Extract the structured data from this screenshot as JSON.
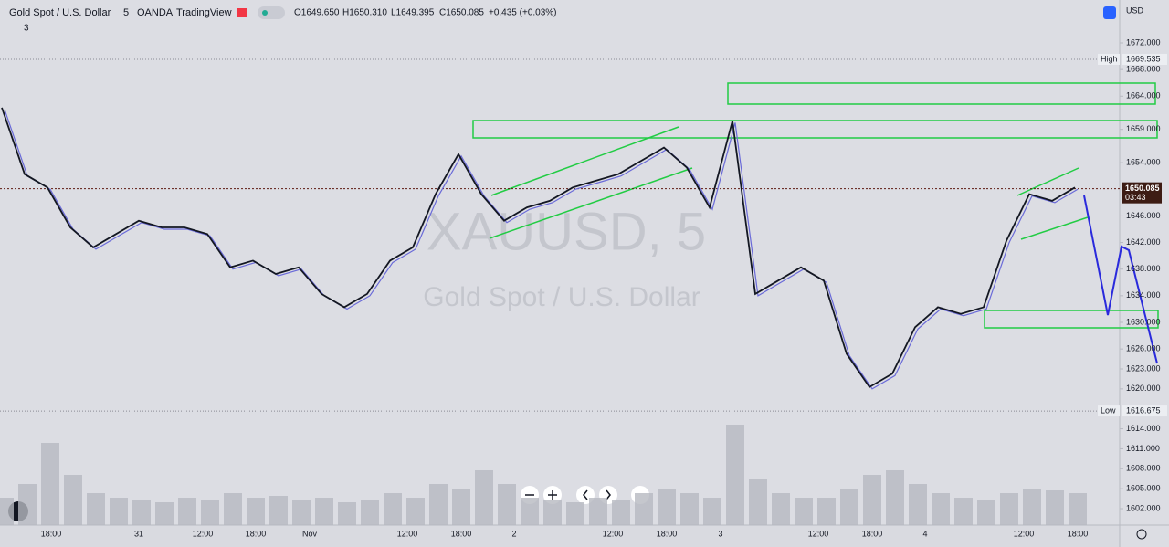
{
  "header": {
    "symbol": "Gold Spot / U.S. Dollar",
    "interval": "5",
    "exchange": "OANDA",
    "source": "TradingView",
    "open": "O1649.650",
    "high": "H1650.310",
    "low": "L1649.395",
    "close": "C1650.085",
    "change": "+0.435 (+0.03%)",
    "indicators": "3",
    "currency": "USD"
  },
  "watermark": {
    "ticker": "XAUUSD, 5",
    "name": "Gold Spot / U.S. Dollar"
  },
  "price_axis": {
    "range": [
      1602,
      1672
    ],
    "ticks": [
      {
        "value": 1672,
        "label": "1672.000"
      },
      {
        "value": 1668,
        "label": "1668.000"
      },
      {
        "value": 1664,
        "label": "1664.000"
      },
      {
        "value": 1659,
        "label": "1659.000"
      },
      {
        "value": 1654,
        "label": "1654.000"
      },
      {
        "value": 1646,
        "label": "1646.000"
      },
      {
        "value": 1642,
        "label": "1642.000"
      },
      {
        "value": 1638,
        "label": "1638.000"
      },
      {
        "value": 1634,
        "label": "1634.000"
      },
      {
        "value": 1630,
        "label": "1630.000"
      },
      {
        "value": 1626,
        "label": "1626.000"
      },
      {
        "value": 1623,
        "label": "1623.000"
      },
      {
        "value": 1620,
        "label": "1620.000"
      },
      {
        "value": 1614,
        "label": "1614.000"
      },
      {
        "value": 1611,
        "label": "1611.000"
      },
      {
        "value": 1608,
        "label": "1608.000"
      },
      {
        "value": 1605,
        "label": "1605.000"
      },
      {
        "value": 1602,
        "label": "1602.000"
      }
    ],
    "high": {
      "tag": "High",
      "value": 1669.535,
      "label": "1669.535"
    },
    "low": {
      "tag": "Low",
      "value": 1616.675,
      "label": "1616.675"
    },
    "last": {
      "value": 1650.085,
      "label": "1650.085",
      "countdown": "03:43"
    }
  },
  "time_axis": [
    "18:00",
    "31",
    "12:00",
    "18:00",
    "Nov",
    "12:00",
    "18:00",
    "2",
    "12:00",
    "18:00",
    "3",
    "12:00",
    "18:00",
    "4",
    "12:00",
    "18:00"
  ],
  "price_path": [
    1662,
    1652,
    1650,
    1644,
    1641,
    1643,
    1645,
    1644,
    1644,
    1643,
    1638,
    1639,
    1637,
    1638,
    1634,
    1632,
    1634,
    1639,
    1641,
    1649,
    1655,
    1649,
    1645,
    1647,
    1648,
    1650,
    1651,
    1652,
    1654,
    1656,
    1653,
    1647,
    1660,
    1634,
    1636,
    1638,
    1636,
    1625,
    1620,
    1622,
    1629,
    1632,
    1631,
    1632,
    1642,
    1649,
    1648,
    1650
  ],
  "volume": [
    30,
    45,
    90,
    55,
    35,
    30,
    28,
    25,
    30,
    28,
    35,
    30,
    32,
    28,
    30,
    25,
    28,
    35,
    30,
    45,
    40,
    60,
    45,
    30,
    28,
    25,
    30,
    28,
    35,
    40,
    35,
    30,
    110,
    50,
    35,
    30,
    30,
    40,
    55,
    60,
    45,
    35,
    30,
    28,
    35,
    40,
    38,
    35
  ]
}
